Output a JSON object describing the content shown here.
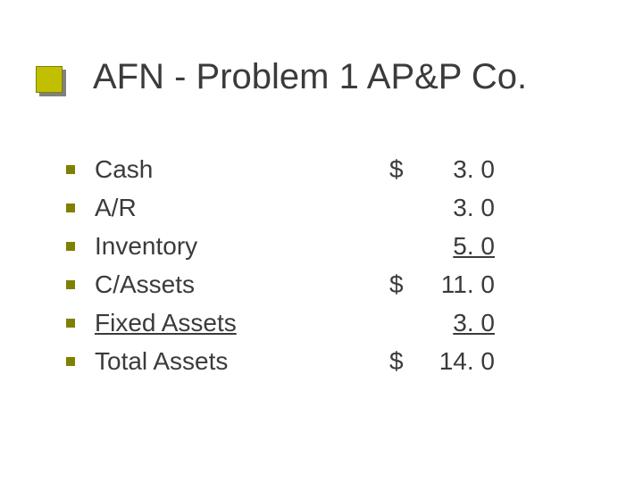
{
  "slide": {
    "title": "AFN - Problem 1 AP&P Co.",
    "accent_color": "#c0c000",
    "accent_border": "#808000",
    "accent_shadow": "#808080",
    "bullet_color": "#808000",
    "text_color": "#3b3b3b",
    "background_color": "#ffffff",
    "title_fontsize": 40,
    "body_fontsize": 28,
    "rows": [
      {
        "label": "Cash",
        "currency": "$",
        "value": "3. 0",
        "label_underline": false,
        "value_underline": false
      },
      {
        "label": "A/R",
        "currency": "",
        "value": "3. 0",
        "label_underline": false,
        "value_underline": false
      },
      {
        "label": "Inventory",
        "currency": "",
        "value": "5. 0",
        "label_underline": false,
        "value_underline": true
      },
      {
        "label": "C/Assets",
        "currency": "$",
        "value": "11. 0",
        "label_underline": false,
        "value_underline": false
      },
      {
        "label": "Fixed Assets",
        "currency": "",
        "value": "3. 0",
        "label_underline": true,
        "value_underline": true
      },
      {
        "label": "Total Assets",
        "currency": "$",
        "value": "14. 0",
        "label_underline": false,
        "value_underline": false
      }
    ]
  }
}
